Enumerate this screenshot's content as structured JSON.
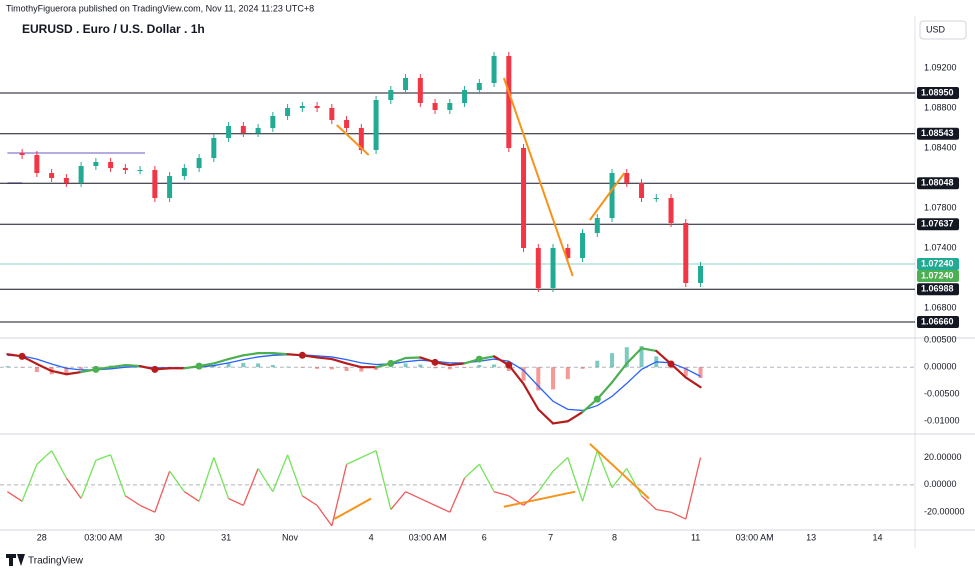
{
  "header": {
    "publisher": "TimothyFiguerora published on TradingView.com, Nov 11, 2024 11:23 UTC+8",
    "currency": "USD",
    "brand": "TradingView"
  },
  "chart_data": [
    {
      "type": "candlestick",
      "title": "EURUSD . Euro / U.S. Dollar . 1h",
      "xlim": [
        -3,
        366
      ],
      "xticks": [
        {
          "value": 14,
          "label": "28"
        },
        {
          "value": 39,
          "label": "03:00 AM"
        },
        {
          "value": 62,
          "label": "30"
        },
        {
          "value": 89,
          "label": "31"
        },
        {
          "value": 115,
          "label": "Nov"
        },
        {
          "value": 148,
          "label": "4"
        },
        {
          "value": 171,
          "label": "03:00 AM"
        },
        {
          "value": 194,
          "label": "6"
        },
        {
          "value": 221,
          "label": "7"
        },
        {
          "value": 247,
          "label": "8"
        },
        {
          "value": 280,
          "label": "11"
        },
        {
          "value": 304,
          "label": "03:00 AM"
        },
        {
          "value": 327,
          "label": "13"
        },
        {
          "value": 354,
          "label": "14"
        }
      ],
      "x": [
        0,
        6,
        12,
        18,
        24,
        30,
        36,
        42,
        48,
        54,
        60,
        66,
        72,
        78,
        84,
        90,
        96,
        102,
        108,
        114,
        120,
        126,
        132,
        138,
        144,
        150,
        156,
        162,
        168,
        174,
        180,
        186,
        192,
        198,
        204,
        210,
        216,
        222,
        228,
        234,
        240,
        246,
        252,
        258,
        264,
        270,
        276,
        282
      ],
      "close": [
        1.0835,
        1.0833,
        1.0815,
        1.081,
        1.0805,
        1.0822,
        1.0826,
        1.082,
        1.0818,
        1.0818,
        1.079,
        1.0812,
        1.082,
        1.083,
        1.085,
        1.0862,
        1.0855,
        1.086,
        1.0872,
        1.088,
        1.0882,
        1.088,
        1.0868,
        1.086,
        1.0838,
        1.0888,
        1.0898,
        1.091,
        1.0885,
        1.0878,
        1.0885,
        1.0898,
        1.0905,
        1.0932,
        1.084,
        1.074,
        1.07,
        1.074,
        1.073,
        1.0755,
        1.077,
        1.0815,
        1.0805,
        1.079,
        1.079,
        1.0765,
        1.0705,
        1.0722
      ],
      "up_color": "#22ab94",
      "down_color": "#f23645",
      "ylim": [
        1.0651,
        1.0968
      ],
      "yticks": [
        {
          "value": 1.092,
          "label": "1.09200"
        },
        {
          "value": 1.088,
          "label": "1.08800"
        },
        {
          "value": 1.084,
          "label": "1.08400"
        },
        {
          "value": 1.078,
          "label": "1.07800"
        },
        {
          "value": 1.074,
          "label": "1.07400"
        },
        {
          "value": 1.068,
          "label": "1.06800"
        }
      ],
      "levels": [
        {
          "value": 1.0895,
          "label": "1.08950"
        },
        {
          "value": 1.08543,
          "label": "1.08543"
        },
        {
          "value": 1.08048,
          "label": "1.08048"
        },
        {
          "value": 1.07637,
          "label": "1.07637"
        },
        {
          "value": 1.06988,
          "label": "1.06988"
        },
        {
          "value": 1.0666,
          "label": "1.06660"
        }
      ],
      "last_price": [
        {
          "value": 1.0724,
          "label": "1.07240",
          "color": "#22ab94"
        },
        {
          "value": 1.0724,
          "label": "1.07240",
          "color": "#4caf50"
        }
      ],
      "ranges": [
        {
          "value": 1.0835,
          "x": [
            0,
            56
          ]
        },
        {
          "value": 1.0805,
          "x": [
            0,
            6
          ]
        }
      ],
      "range_color": "#9c8fd6",
      "trendlines": [
        {
          "x": [
            134,
            147
          ],
          "y": [
            1.0863,
            1.0833
          ]
        },
        {
          "x": [
            202,
            230
          ],
          "y": [
            1.091,
            1.0712
          ]
        },
        {
          "x": [
            237,
            251
          ],
          "y": [
            1.0768,
            1.0815
          ]
        }
      ],
      "trend_color": "#f7931a"
    },
    {
      "type": "macd",
      "macd": [
        0.0024,
        0.002,
        0.0006,
        -0.0007,
        -0.0013,
        -0.0009,
        -0.0004,
        0,
        0.0004,
        0.0002,
        -0.0004,
        -0.0002,
        -0.0002,
        0.0002,
        0.0007,
        0.0015,
        0.0022,
        0.0026,
        0.0026,
        0.0024,
        0.0022,
        0.0018,
        0.0015,
        0.0007,
        0,
        0,
        0.0007,
        0.0017,
        0.0018,
        0.0009,
        0.0004,
        0.0007,
        0.0015,
        0.002,
        0.0004,
        -0.0031,
        -0.0078,
        -0.0104,
        -0.01,
        -0.0083,
        -0.0059,
        -0.0028,
        0.0007,
        0.0035,
        0.003,
        0.0006,
        -0.0019,
        -0.0037
      ],
      "signal": [
        0.0022,
        0.0021,
        0.0015,
        0.0006,
        -0.0002,
        -0.0005,
        -0.0005,
        -0.0003,
        0,
        0.0001,
        -0.0001,
        -0.0001,
        -0.0001,
        0,
        0.0003,
        0.0008,
        0.0014,
        0.0019,
        0.0022,
        0.0023,
        0.0023,
        0.0021,
        0.0019,
        0.0014,
        0.0008,
        0.0005,
        0.0006,
        0.001,
        0.0013,
        0.0011,
        0.0008,
        0.0008,
        0.0011,
        0.0015,
        0.0011,
        -0.0006,
        -0.0035,
        -0.0063,
        -0.0078,
        -0.008,
        -0.0071,
        -0.0054,
        -0.003,
        -0.0004,
        0.001,
        0.0008,
        -0.0003,
        -0.0017
      ],
      "histogram": [
        0.0002,
        -0.0001,
        -0.0009,
        -0.0013,
        -0.0011,
        -0.0004,
        0.0001,
        0.0003,
        0.0004,
        0.0001,
        -0.0003,
        -0.0001,
        -0.0001,
        0.0002,
        0.0004,
        0.0007,
        0.0008,
        0.0007,
        0.0004,
        0.0001,
        -0.0001,
        -0.0003,
        -0.0004,
        -0.0007,
        -0.0008,
        -0.0005,
        0.0001,
        0.0007,
        0.0005,
        -0.0002,
        -0.0004,
        -0.0001,
        0.0004,
        0.0005,
        -0.0007,
        -0.0025,
        -0.0043,
        -0.0041,
        -0.0022,
        -0.0003,
        0.0012,
        0.0026,
        0.0037,
        0.0039,
        0.002,
        -0.0002,
        -0.0016,
        -0.002
      ],
      "up_color": "#4caf50",
      "down_color": "#b71c1c",
      "signal_color": "#2962ff",
      "hist_up_color": "#26a69a",
      "hist_down_color": "#ef5350",
      "ylim": [
        -0.0118,
        0.0054
      ],
      "yticks": [
        {
          "value": 0.005,
          "label": "0.00500"
        },
        {
          "value": 0,
          "label": "0.00000"
        },
        {
          "value": -0.005,
          "label": "-0.00500"
        },
        {
          "value": -0.01,
          "label": "-0.01000"
        }
      ]
    },
    {
      "type": "line",
      "values": [
        -5,
        -12,
        15,
        25,
        5,
        -10,
        18,
        22,
        -8,
        -15,
        -20,
        10,
        -5,
        -12,
        20,
        -10,
        -15,
        12,
        -5,
        22,
        -8,
        -15,
        -30,
        15,
        20,
        25,
        -18,
        -5,
        -10,
        -15,
        -20,
        5,
        15,
        -5,
        -8,
        -15,
        -5,
        10,
        20,
        -12,
        25,
        -2,
        12,
        -8,
        -18,
        -20,
        -25,
        20
      ],
      "up_color": "#76e35c",
      "down_color": "#f05a5a",
      "ylim": [
        -33,
        35
      ],
      "yticks": [
        {
          "value": 20,
          "label": "20.00000"
        },
        {
          "value": 0,
          "label": "0.00000"
        },
        {
          "value": -20,
          "label": "-20.00000"
        }
      ],
      "trendlines": [
        {
          "x": [
            133,
            148
          ],
          "y": [
            -25,
            -10
          ]
        },
        {
          "x": [
            202,
            231
          ],
          "y": [
            -16,
            -5
          ]
        },
        {
          "x": [
            237,
            261
          ],
          "y": [
            30,
            -10
          ]
        }
      ],
      "trend_color": "#f7931a"
    }
  ]
}
